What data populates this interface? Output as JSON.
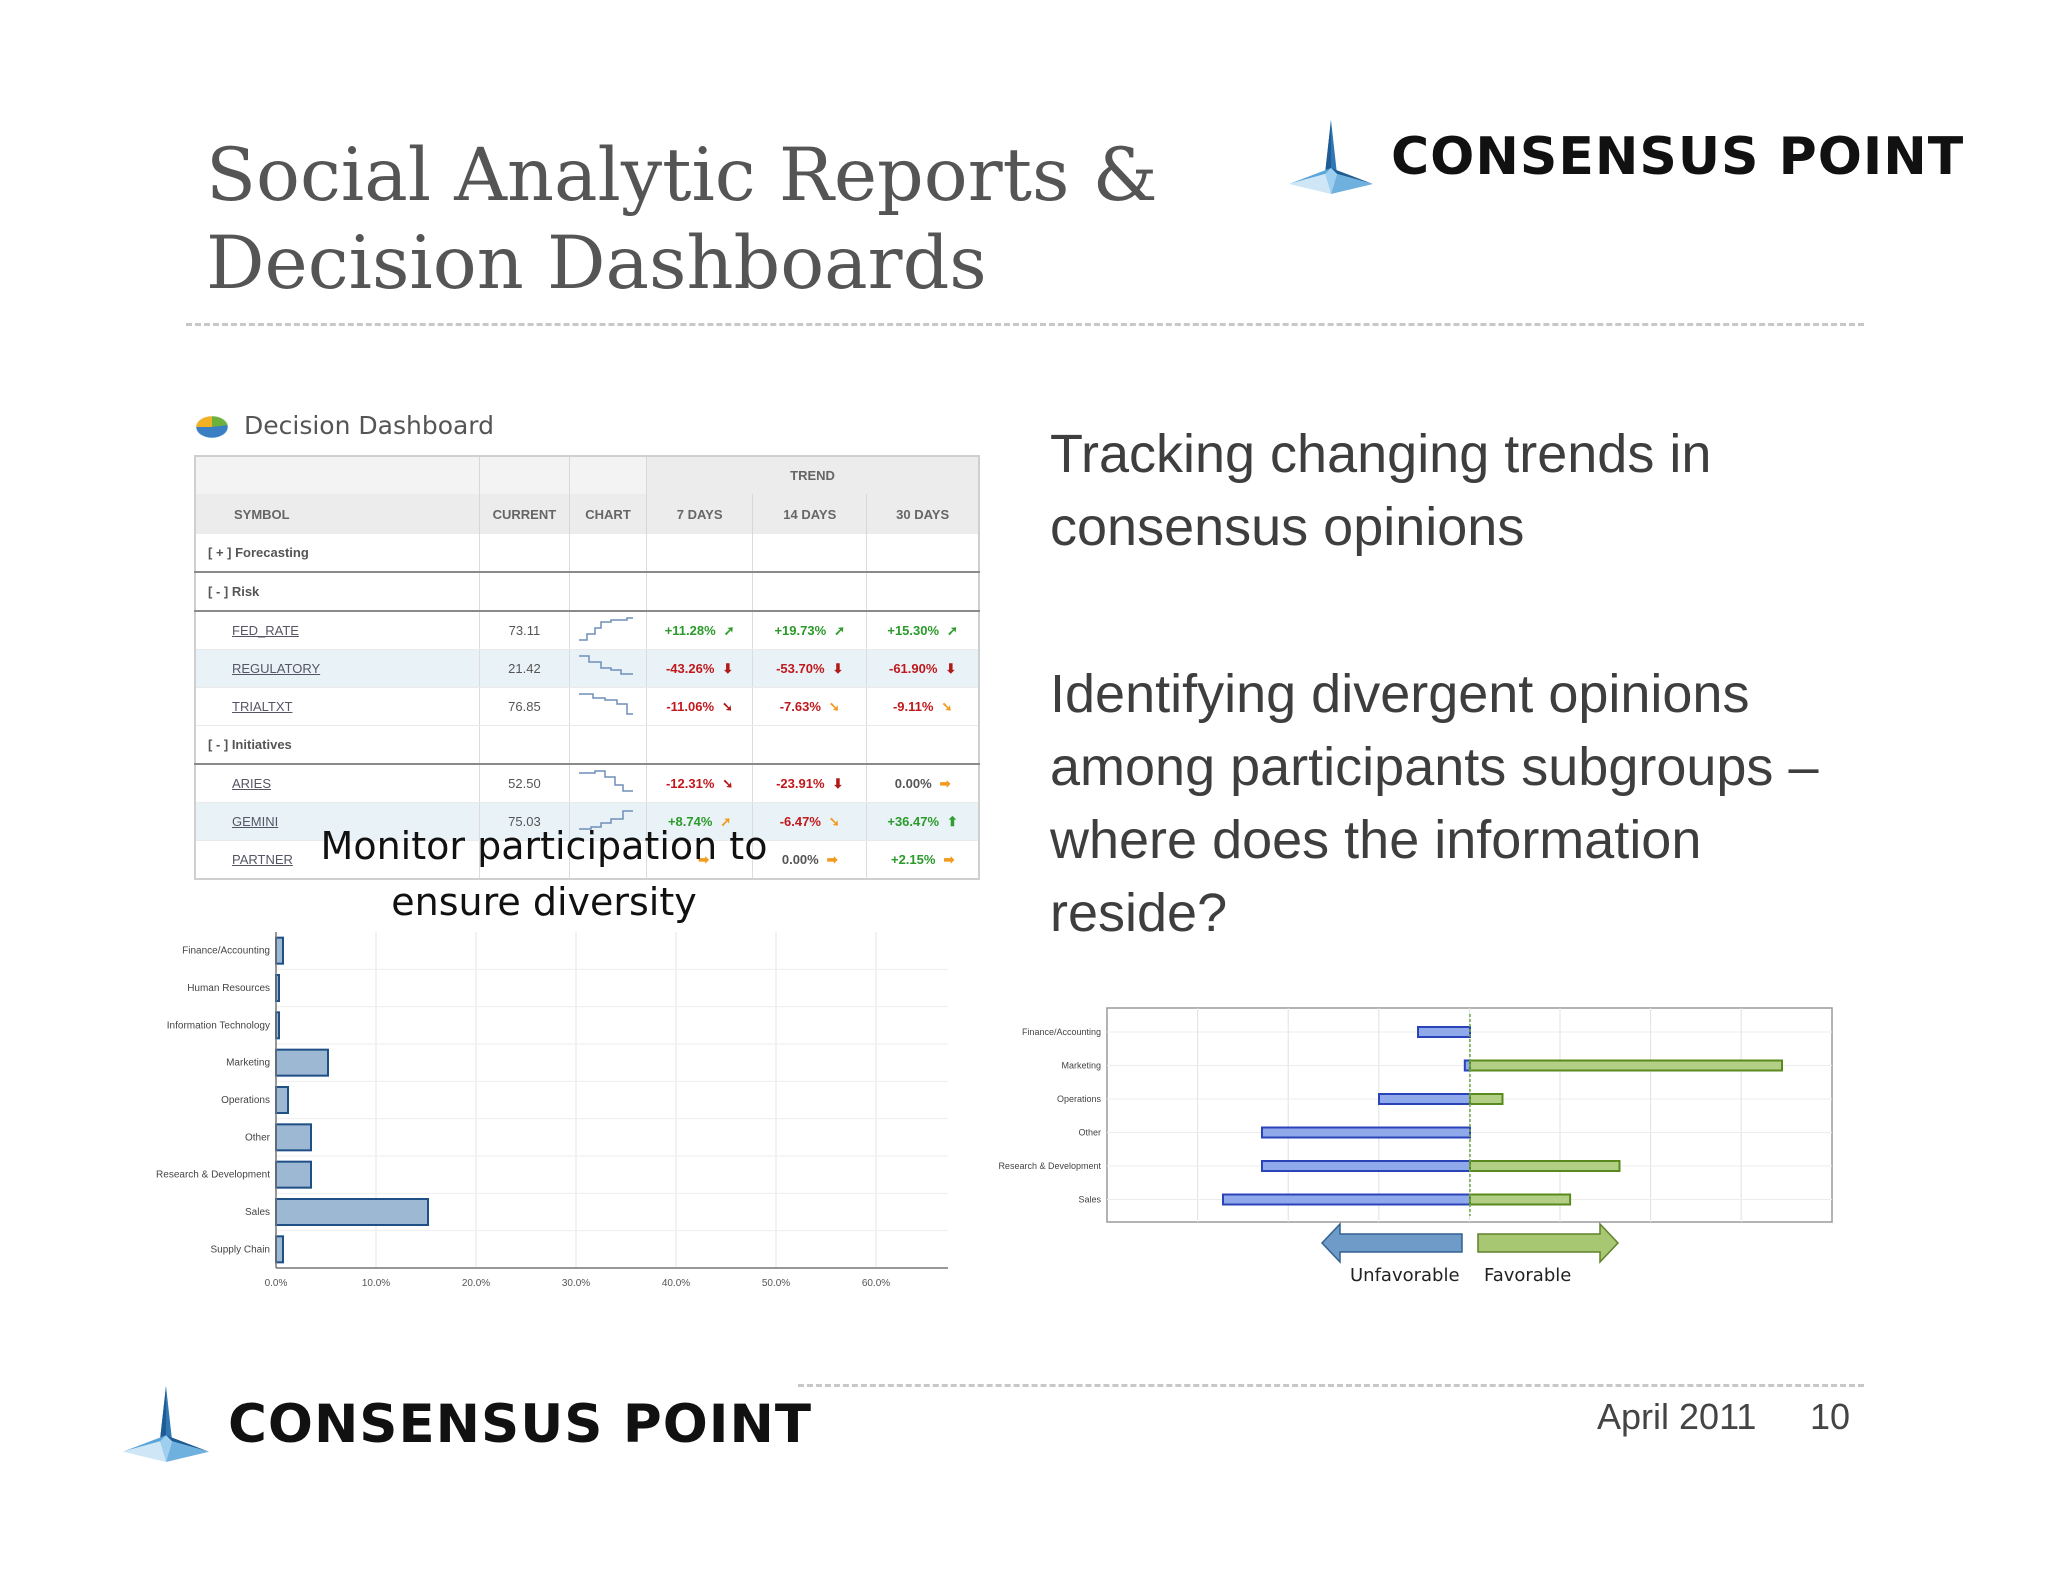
{
  "slide": {
    "title": "Social Analytic Reports & Decision Dashboards",
    "brand": "CONSENSUS POINT",
    "footer_date": "April 2011",
    "page_number": "10"
  },
  "right_text": {
    "tracking": "Tracking changing trends in consensus opinions",
    "identifying": "Identifying divergent opinions among participants subgroups – where does the information reside?"
  },
  "dashboard": {
    "title": "Decision Dashboard",
    "trend_header": "TREND",
    "columns": [
      "SYMBOL",
      "CURRENT",
      "CHART",
      "7 DAYS",
      "14 DAYS",
      "30 DAYS"
    ],
    "rows": [
      {
        "type": "group",
        "label": "[ + ] Forecasting"
      },
      {
        "type": "group",
        "label": "[ - ] Risk"
      },
      {
        "type": "row",
        "symbol": "FED_RATE",
        "current": "73.11",
        "d7": "+11.28%",
        "d14": "+19.73%",
        "d30": "+15.30%",
        "a7": "up",
        "a14": "up",
        "a30": "up",
        "spark": "rise"
      },
      {
        "type": "row",
        "symbol": "REGULATORY",
        "current": "21.42",
        "d7": "-43.26%",
        "d14": "-53.70%",
        "d30": "-61.90%",
        "a7": "down",
        "a14": "down",
        "a30": "down",
        "spark": "fall",
        "highlight": true
      },
      {
        "type": "row",
        "symbol": "TRIALTXT",
        "current": "76.85",
        "d7": "-11.06%",
        "d14": "-7.63%",
        "d30": "-9.11%",
        "a7": "down-red",
        "a14": "down-orange",
        "a30": "down-orange",
        "spark": "fall2"
      },
      {
        "type": "group",
        "label": "[ - ] Initiatives"
      },
      {
        "type": "row",
        "symbol": "ARIES",
        "current": "52.50",
        "d7": "-12.31%",
        "d14": "-23.91%",
        "d30": "0.00%",
        "a7": "down-red",
        "a14": "down",
        "a30": "flat",
        "spark": "fall3"
      },
      {
        "type": "row",
        "symbol": "GEMINI",
        "current": "75.03",
        "d7": "+8.74%",
        "d14": "-6.47%",
        "d30": "+36.47%",
        "a7": "up-orange",
        "a14": "down-orange",
        "a30": "up-green",
        "spark": "rise2"
      },
      {
        "type": "row",
        "symbol": "PARTNER",
        "current": "",
        "d7": "",
        "d14": "0.00%",
        "d30": "+2.15%",
        "a7": "flat",
        "a14": "flat",
        "a30": "flat",
        "spark": "flat"
      }
    ]
  },
  "monitor_caption": "Monitor participation to ensure diversity",
  "participation_chart_data": {
    "type": "bar",
    "orientation": "horizontal",
    "categories": [
      "Finance/Accounting",
      "Human Resources",
      "Information Technology",
      "Marketing",
      "Operations",
      "Other",
      "Research & Development",
      "Sales",
      "Supply Chain"
    ],
    "values": [
      0.7,
      0.3,
      0.3,
      5.2,
      1.2,
      3.5,
      3.5,
      15.2,
      0.7
    ],
    "xticks": [
      "0.0%",
      "10.0%",
      "20.0%",
      "30.0%",
      "40.0%",
      "50.0%",
      "60.0%"
    ],
    "xlim": [
      0,
      60
    ],
    "grid": true,
    "color": "#9db8d2"
  },
  "divergence_chart_data": {
    "type": "bar",
    "orientation": "horizontal-diverging",
    "categories": [
      "Finance/Accounting",
      "Marketing",
      "Operations",
      "Other",
      "Research & Development",
      "Sales"
    ],
    "unfavorable": [
      0.4,
      0.04,
      0.7,
      1.6,
      1.6,
      1.9
    ],
    "favorable": [
      0,
      2.4,
      0.25,
      0,
      1.15,
      0.77
    ],
    "legend": [
      "Unfavorable",
      "Favorable"
    ],
    "colors": {
      "unfavorable": "#8fa9ea",
      "favorable": "#b3cf85"
    }
  },
  "colors": {
    "title": "#555555",
    "positive": "#2a9a2a",
    "negative": "#c0181c",
    "neutral_arrow": "#f29a1e"
  }
}
